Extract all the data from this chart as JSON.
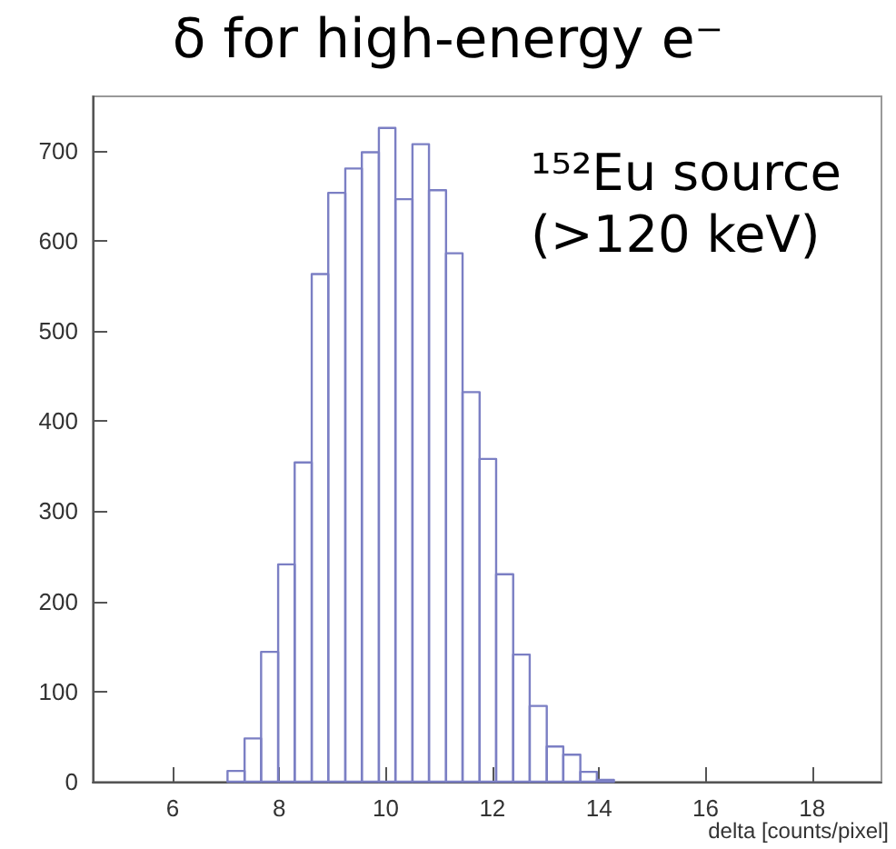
{
  "chart_data": {
    "type": "histogram",
    "title": "δ for high-energy e⁻",
    "xlabel": "delta [counts/pixel]",
    "annotations": [
      "¹⁵²Eu source\n(>120 keV)"
    ],
    "bins": [
      7.03,
      7.35,
      7.66,
      7.98,
      8.29,
      8.61,
      8.92,
      9.24,
      9.55,
      9.87,
      10.18,
      10.5,
      10.81,
      11.13,
      11.44,
      11.76,
      12.07,
      12.39,
      12.7,
      13.02,
      13.33,
      13.65,
      13.96,
      14.28
    ],
    "values": [
      12,
      48,
      144,
      241,
      354,
      563,
      653,
      680,
      698,
      725,
      646,
      707,
      656,
      586,
      432,
      358,
      230,
      141,
      84,
      39,
      30,
      11,
      2
    ],
    "color": "#7b7fc4",
    "xlim": [
      4.5,
      19.3
    ],
    "xticks": [
      6,
      8,
      10,
      12,
      14,
      16,
      18
    ],
    "ylim": [
      0,
      760
    ],
    "yticks": [
      0,
      100,
      200,
      300,
      400,
      500,
      600,
      700
    ],
    "grid": false
  }
}
